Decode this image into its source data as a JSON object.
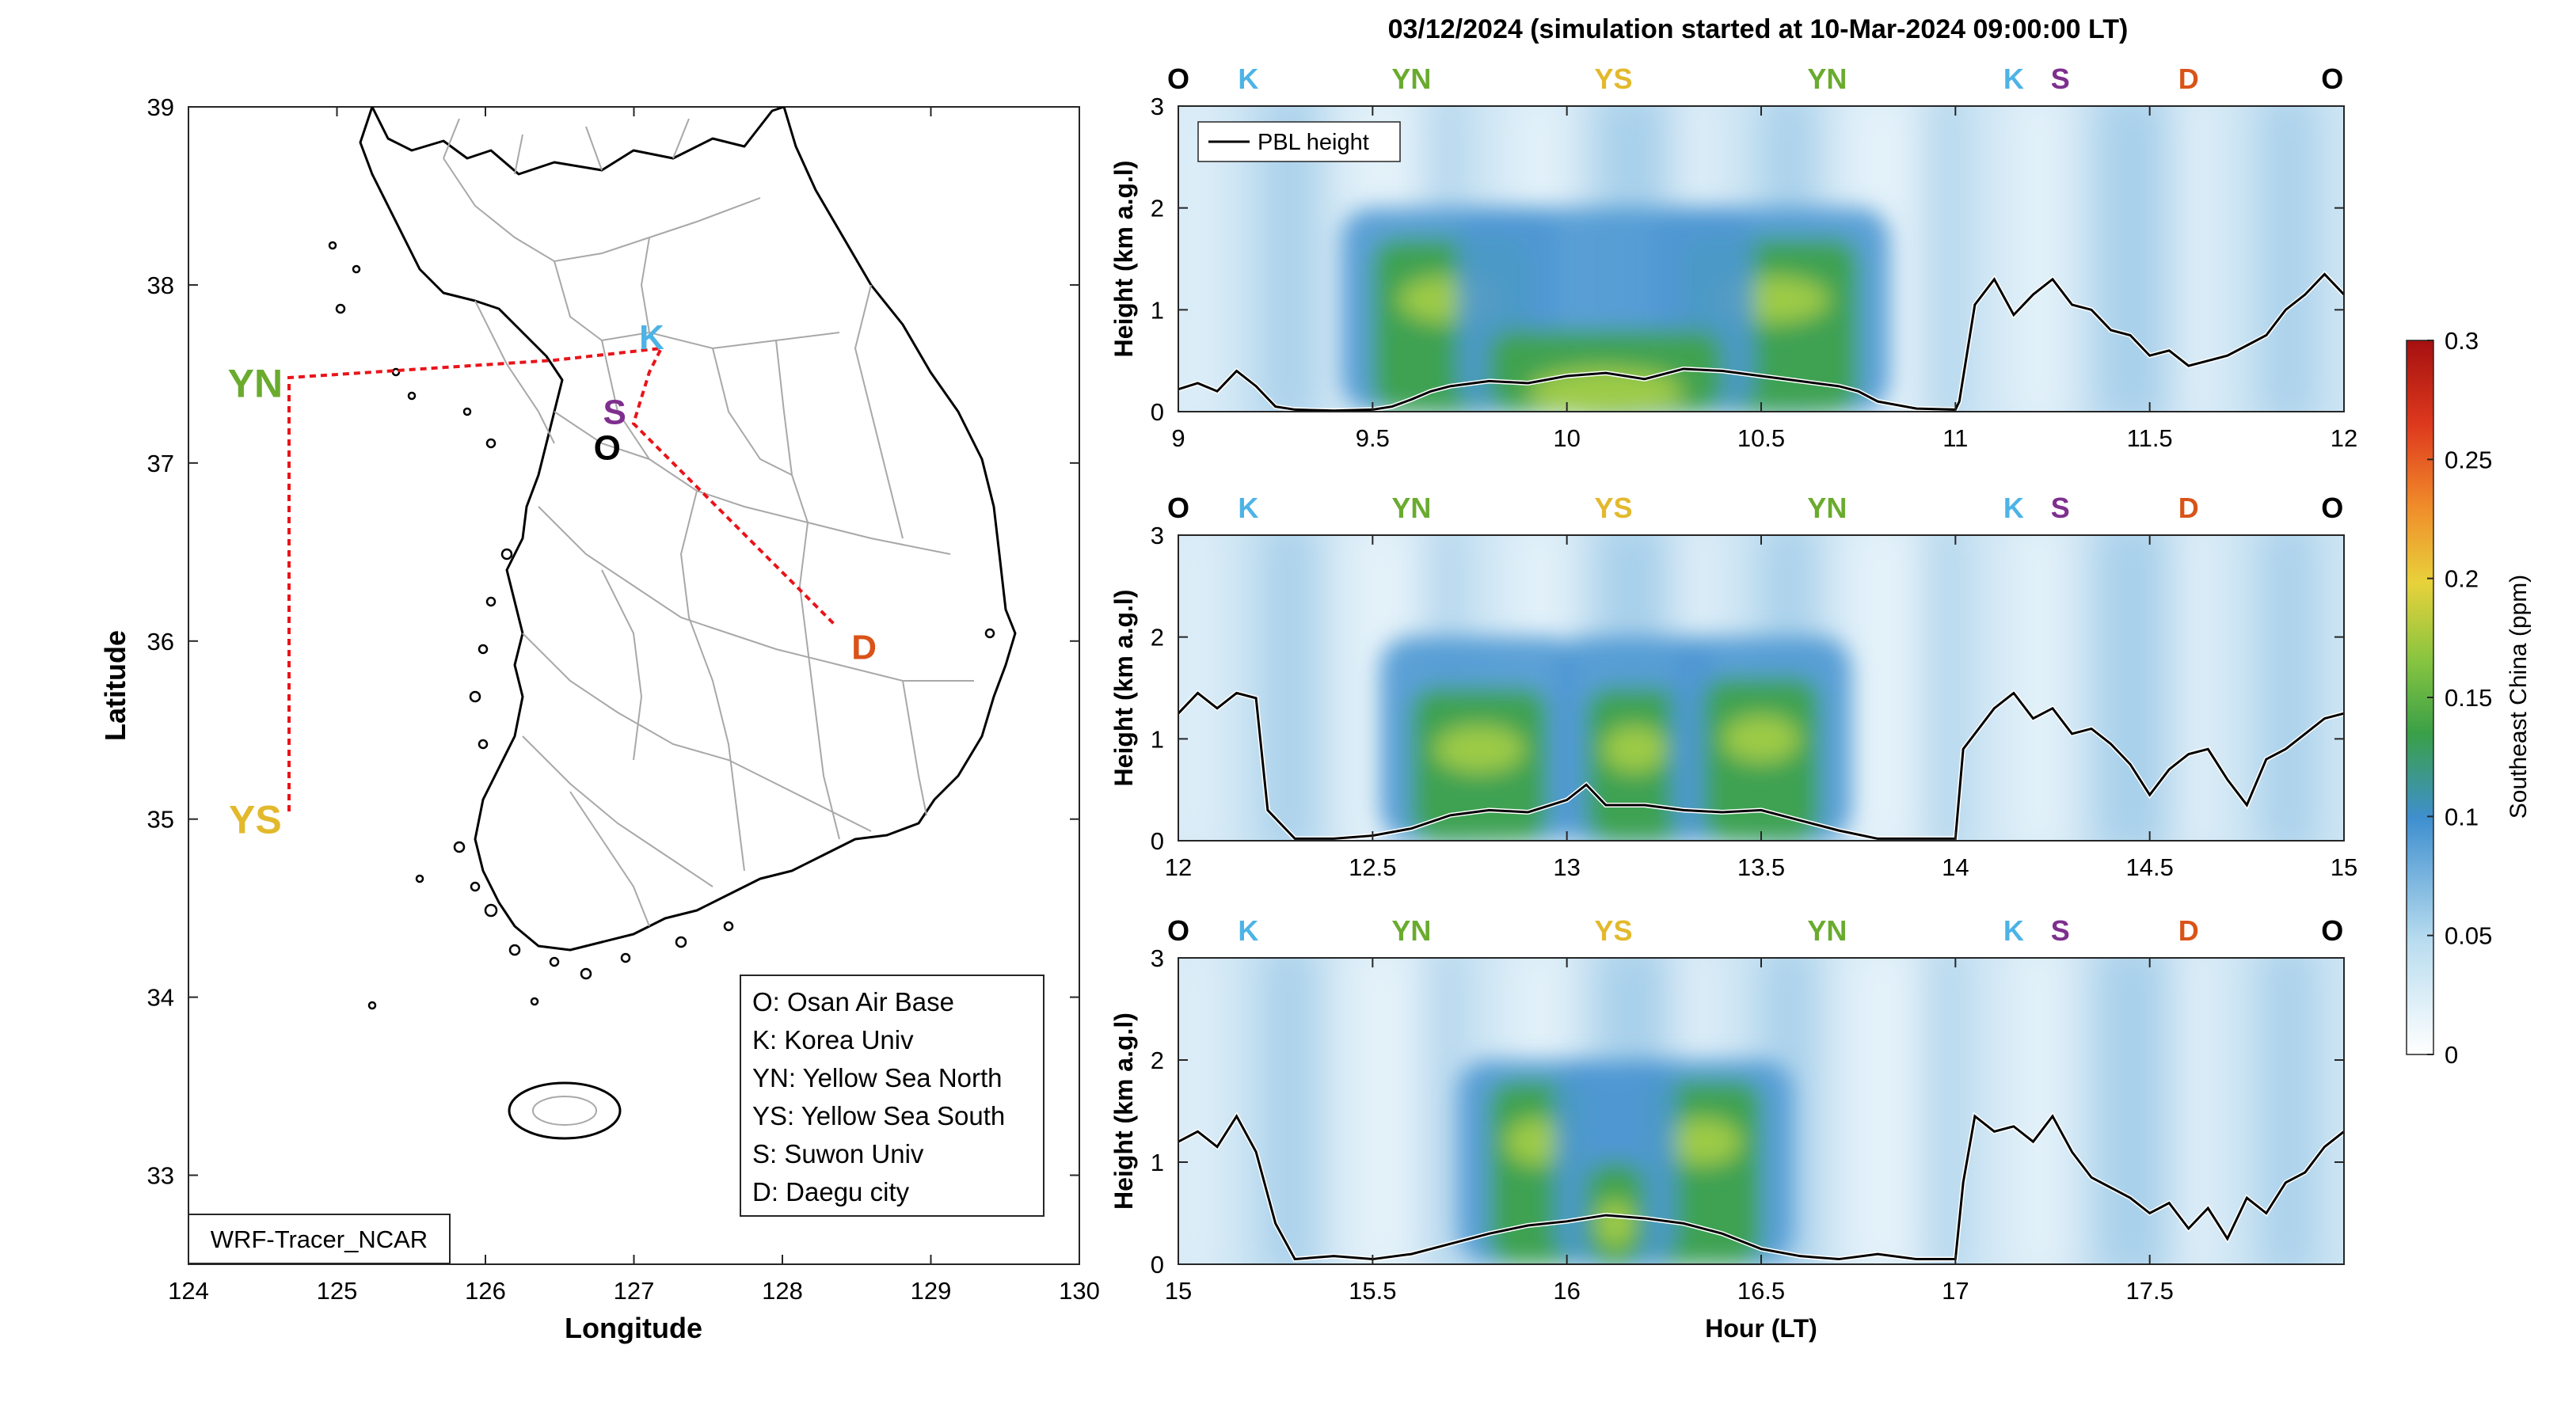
{
  "title": "03/12/2024 (simulation started at 10-Mar-2024 09:00:00 LT)",
  "colors": {
    "O": "#000000",
    "K": "#4db3e6",
    "YN": "#6aab2e",
    "YS": "#e3b92c",
    "S": "#7e2f8e",
    "D": "#d95319",
    "route": "#e8141a"
  },
  "map": {
    "xlabel": "Longitude",
    "ylabel": "Latitude",
    "xlim": [
      124,
      130
    ],
    "ylim": [
      32.5,
      39
    ],
    "xticks": [
      "124",
      "125",
      "126",
      "127",
      "128",
      "129",
      "130"
    ],
    "yticks": [
      "33",
      "34",
      "35",
      "36",
      "37",
      "38",
      "39"
    ],
    "tag": "WRF-Tracer_NCAR",
    "sites": [
      {
        "code": "YN",
        "lon": 124.72,
        "lat": 37.45,
        "label_lon": 124.45,
        "label_lat": 37.45
      },
      {
        "code": "YS",
        "lon": 124.72,
        "lat": 35.05,
        "label_lon": 124.45,
        "label_lat": 35.0
      },
      {
        "code": "K",
        "lon": 127.03,
        "lat": 37.59,
        "label_lon": 127.12,
        "label_lat": 37.72
      },
      {
        "code": "S",
        "lon": 126.97,
        "lat": 37.28,
        "label_lon": 126.87,
        "label_lat": 37.3
      },
      {
        "code": "O",
        "lon": 127.03,
        "lat": 37.09,
        "label_lon": 126.82,
        "label_lat": 37.1
      },
      {
        "code": "D",
        "lon": 128.6,
        "lat": 35.87,
        "label_lon": 128.55,
        "label_lat": 35.98
      }
    ],
    "legend": [
      "O: Osan Air Base",
      "K: Korea Univ",
      "YN: Yellow Sea North",
      "YS: Yellow Sea South",
      "S: Suwon Univ",
      "D: Daegu city"
    ]
  },
  "chart_data": [
    {
      "type": "heatmap",
      "xlim": [
        9,
        12
      ],
      "ylim": [
        0,
        3
      ],
      "xticks": [
        "9",
        "9.5",
        "10",
        "10.5",
        "11",
        "11.5",
        "12"
      ],
      "yticks": [
        "0",
        "1",
        "2",
        "3"
      ],
      "ylabel": "Height (km a.g.l)",
      "xlabel": "",
      "legend": "PBL height",
      "site_markers": [
        {
          "code": "O",
          "x": 9.0
        },
        {
          "code": "K",
          "x": 9.18
        },
        {
          "code": "YN",
          "x": 9.6
        },
        {
          "code": "YS",
          "x": 10.12
        },
        {
          "code": "YN",
          "x": 10.67
        },
        {
          "code": "K",
          "x": 11.15
        },
        {
          "code": "S",
          "x": 11.27
        },
        {
          "code": "D",
          "x": 11.6
        },
        {
          "code": "O",
          "x": 11.97
        }
      ],
      "pbl_height": {
        "x": [
          9.0,
          9.05,
          9.1,
          9.15,
          9.2,
          9.25,
          9.3,
          9.4,
          9.5,
          9.55,
          9.6,
          9.65,
          9.7,
          9.8,
          9.9,
          10.0,
          10.1,
          10.2,
          10.3,
          10.4,
          10.5,
          10.6,
          10.7,
          10.75,
          10.8,
          10.9,
          11.0,
          11.01,
          11.05,
          11.1,
          11.15,
          11.2,
          11.25,
          11.3,
          11.35,
          11.4,
          11.45,
          11.5,
          11.55,
          11.6,
          11.65,
          11.7,
          11.75,
          11.8,
          11.85,
          11.9,
          11.95,
          12.0
        ],
        "y": [
          0.22,
          0.28,
          0.2,
          0.4,
          0.25,
          0.05,
          0.02,
          0.01,
          0.02,
          0.05,
          0.12,
          0.2,
          0.25,
          0.3,
          0.28,
          0.35,
          0.38,
          0.32,
          0.42,
          0.4,
          0.35,
          0.3,
          0.25,
          0.2,
          0.1,
          0.03,
          0.02,
          0.1,
          1.05,
          1.3,
          0.95,
          1.15,
          1.3,
          1.05,
          1.0,
          0.8,
          0.75,
          0.55,
          0.6,
          0.45,
          0.5,
          0.55,
          0.65,
          0.75,
          1.0,
          1.15,
          1.35,
          1.15
        ]
      },
      "plumes": [
        {
          "x": 9.5,
          "x2": 9.9,
          "z": 1.1,
          "v": 0.13
        },
        {
          "x": 10.3,
          "x2": 10.75,
          "z": 1.1,
          "v": 0.13
        },
        {
          "x": 9.8,
          "x2": 10.4,
          "z": 0.2,
          "v": 0.13
        }
      ]
    },
    {
      "type": "heatmap",
      "xlim": [
        12,
        15
      ],
      "ylim": [
        0,
        3
      ],
      "xticks": [
        "12",
        "12.5",
        "13",
        "13.5",
        "14",
        "14.5",
        "15"
      ],
      "yticks": [
        "0",
        "1",
        "2",
        "3"
      ],
      "ylabel": "Height (km a.g.l)",
      "xlabel": "",
      "site_markers": [
        {
          "code": "O",
          "x": 12.0
        },
        {
          "code": "K",
          "x": 12.18
        },
        {
          "code": "YN",
          "x": 12.6
        },
        {
          "code": "YS",
          "x": 13.12
        },
        {
          "code": "YN",
          "x": 13.67
        },
        {
          "code": "K",
          "x": 14.15
        },
        {
          "code": "S",
          "x": 14.27
        },
        {
          "code": "D",
          "x": 14.6
        },
        {
          "code": "O",
          "x": 14.97
        }
      ],
      "pbl_height": {
        "x": [
          12.0,
          12.05,
          12.1,
          12.15,
          12.2,
          12.23,
          12.3,
          12.4,
          12.5,
          12.6,
          12.7,
          12.8,
          12.9,
          13.0,
          13.05,
          13.1,
          13.2,
          13.3,
          13.4,
          13.5,
          13.6,
          13.7,
          13.8,
          13.9,
          14.0,
          14.02,
          14.1,
          14.15,
          14.2,
          14.25,
          14.3,
          14.35,
          14.4,
          14.45,
          14.5,
          14.55,
          14.6,
          14.65,
          14.7,
          14.75,
          14.8,
          14.85,
          14.9,
          14.95,
          15.0
        ],
        "y": [
          1.25,
          1.45,
          1.3,
          1.45,
          1.4,
          0.3,
          0.02,
          0.02,
          0.05,
          0.12,
          0.25,
          0.3,
          0.28,
          0.4,
          0.55,
          0.35,
          0.35,
          0.3,
          0.28,
          0.3,
          0.2,
          0.1,
          0.02,
          0.02,
          0.02,
          0.9,
          1.3,
          1.45,
          1.2,
          1.3,
          1.05,
          1.1,
          0.95,
          0.75,
          0.45,
          0.7,
          0.85,
          0.9,
          0.6,
          0.35,
          0.8,
          0.9,
          1.05,
          1.2,
          1.25
        ]
      },
      "plumes": [
        {
          "x": 12.6,
          "x2": 12.95,
          "z": 0.9,
          "v": 0.12
        },
        {
          "x": 13.05,
          "x2": 13.3,
          "z": 0.9,
          "v": 0.12
        },
        {
          "x": 13.35,
          "x2": 13.65,
          "z": 1.0,
          "v": 0.12
        }
      ]
    },
    {
      "type": "heatmap",
      "xlim": [
        15,
        18
      ],
      "ylim": [
        0,
        3
      ],
      "xticks": [
        "15",
        "15.5",
        "16",
        "16.5",
        "17",
        "17.5"
      ],
      "yticks": [
        "0",
        "1",
        "2",
        "3"
      ],
      "ylabel": "Height (km a.g.l)",
      "xlabel": "Hour (LT)",
      "site_markers": [
        {
          "code": "O",
          "x": 15.0
        },
        {
          "code": "K",
          "x": 15.18
        },
        {
          "code": "YN",
          "x": 15.6
        },
        {
          "code": "YS",
          "x": 16.12
        },
        {
          "code": "YN",
          "x": 16.67
        },
        {
          "code": "K",
          "x": 17.15
        },
        {
          "code": "S",
          "x": 17.27
        },
        {
          "code": "D",
          "x": 17.6
        },
        {
          "code": "O",
          "x": 17.97
        }
      ],
      "pbl_height": {
        "x": [
          15.0,
          15.05,
          15.1,
          15.15,
          15.2,
          15.25,
          15.3,
          15.4,
          15.5,
          15.6,
          15.7,
          15.8,
          15.9,
          16.0,
          16.1,
          16.2,
          16.3,
          16.4,
          16.5,
          16.6,
          16.7,
          16.8,
          16.9,
          17.0,
          17.02,
          17.05,
          17.1,
          17.15,
          17.2,
          17.25,
          17.3,
          17.35,
          17.4,
          17.45,
          17.5,
          17.55,
          17.6,
          17.65,
          17.7,
          17.75,
          17.8,
          17.85,
          17.9,
          17.95,
          18.0
        ],
        "y": [
          1.2,
          1.3,
          1.15,
          1.45,
          1.1,
          0.4,
          0.05,
          0.08,
          0.05,
          0.1,
          0.2,
          0.3,
          0.38,
          0.42,
          0.48,
          0.45,
          0.4,
          0.3,
          0.15,
          0.08,
          0.05,
          0.1,
          0.05,
          0.05,
          0.8,
          1.45,
          1.3,
          1.35,
          1.2,
          1.45,
          1.1,
          0.85,
          0.75,
          0.65,
          0.5,
          0.6,
          0.35,
          0.55,
          0.25,
          0.65,
          0.5,
          0.8,
          0.9,
          1.15,
          1.3
        ]
      },
      "plumes": [
        {
          "x": 15.8,
          "x2": 16.05,
          "z": 1.2,
          "v": 0.12
        },
        {
          "x": 16.2,
          "x2": 16.5,
          "z": 1.2,
          "v": 0.12
        },
        {
          "x": 16.05,
          "x2": 16.2,
          "z": 0.4,
          "v": 0.11
        }
      ]
    }
  ],
  "colorbar": {
    "label": "Southeast China (ppm)",
    "ticks": [
      "0",
      "0.05",
      "0.1",
      "0.15",
      "0.2",
      "0.25",
      "0.3"
    ],
    "range": [
      0,
      0.3
    ]
  }
}
